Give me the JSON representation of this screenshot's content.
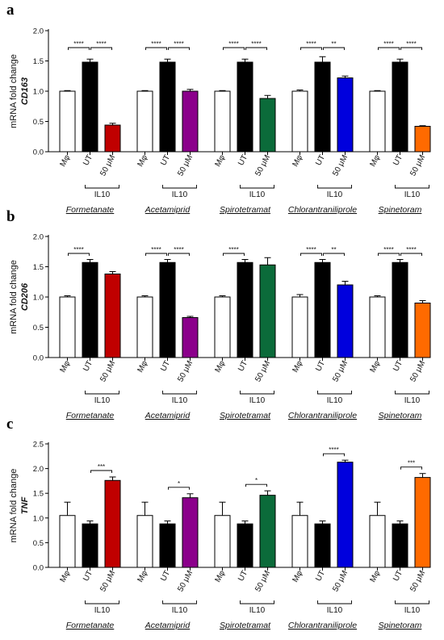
{
  "chart_data": [
    {
      "panel": "a",
      "type": "bar",
      "ylabel": "mRNA fold change",
      "ylabel_gene": "CD163",
      "ylim": [
        0,
        2.0
      ],
      "yticks": [
        "0.0",
        "0.5",
        "1.0",
        "1.5",
        "2.0"
      ],
      "categories": [
        "Mφ",
        "UT",
        "50 μM"
      ],
      "bracket_label": "IL10",
      "groups": [
        {
          "name": "Formetanate",
          "color": "#c00000",
          "values": [
            1.0,
            1.48,
            0.44
          ],
          "errors": [
            0.01,
            0.05,
            0.03
          ],
          "sig": [
            {
              "from": 0,
              "to": 1,
              "label": "****"
            },
            {
              "from": 1,
              "to": 2,
              "label": "****"
            }
          ]
        },
        {
          "name": "Acetamiprid",
          "color": "#8b008b",
          "values": [
            1.0,
            1.48,
            1.0
          ],
          "errors": [
            0.01,
            0.05,
            0.03
          ],
          "sig": [
            {
              "from": 0,
              "to": 1,
              "label": "****"
            },
            {
              "from": 1,
              "to": 2,
              "label": "****"
            }
          ]
        },
        {
          "name": "Spirotetramat",
          "color": "#0b6b3a",
          "values": [
            1.0,
            1.48,
            0.88
          ],
          "errors": [
            0.01,
            0.05,
            0.05
          ],
          "sig": [
            {
              "from": 0,
              "to": 1,
              "label": "****"
            },
            {
              "from": 1,
              "to": 2,
              "label": "****"
            }
          ]
        },
        {
          "name": "Chlorantraniliprole",
          "color": "#0000dd",
          "values": [
            1.0,
            1.48,
            1.22
          ],
          "errors": [
            0.02,
            0.09,
            0.03
          ],
          "sig": [
            {
              "from": 0,
              "to": 1,
              "label": "****"
            },
            {
              "from": 1,
              "to": 2,
              "label": "**"
            }
          ]
        },
        {
          "name": "Spinetoram",
          "color": "#ff6a00",
          "values": [
            1.0,
            1.48,
            0.42
          ],
          "errors": [
            0.01,
            0.05,
            0.01
          ],
          "sig": [
            {
              "from": 0,
              "to": 1,
              "label": "****"
            },
            {
              "from": 1,
              "to": 2,
              "label": "****"
            }
          ]
        }
      ]
    },
    {
      "panel": "b",
      "type": "bar",
      "ylabel": "mRNA fold change",
      "ylabel_gene": "CD206",
      "ylim": [
        0,
        2.0
      ],
      "yticks": [
        "0.0",
        "0.5",
        "1.0",
        "1.5",
        "2.0"
      ],
      "categories": [
        "Mφ",
        "UT",
        "50 μM"
      ],
      "bracket_label": "IL10",
      "groups": [
        {
          "name": "Formetanate",
          "color": "#c00000",
          "values": [
            1.0,
            1.57,
            1.38
          ],
          "errors": [
            0.02,
            0.05,
            0.04
          ],
          "sig": [
            {
              "from": 0,
              "to": 1,
              "label": "****"
            }
          ]
        },
        {
          "name": "Acetamiprid",
          "color": "#8b008b",
          "values": [
            1.0,
            1.57,
            0.66
          ],
          "errors": [
            0.02,
            0.05,
            0.02
          ],
          "sig": [
            {
              "from": 0,
              "to": 1,
              "label": "****"
            },
            {
              "from": 1,
              "to": 2,
              "label": "****"
            }
          ]
        },
        {
          "name": "Spirotetramat",
          "color": "#0b6b3a",
          "values": [
            1.0,
            1.57,
            1.53
          ],
          "errors": [
            0.02,
            0.05,
            0.12
          ],
          "sig": [
            {
              "from": 0,
              "to": 1,
              "label": "****"
            }
          ]
        },
        {
          "name": "Chlorantraniliprole",
          "color": "#0000dd",
          "values": [
            1.0,
            1.57,
            1.2
          ],
          "errors": [
            0.04,
            0.05,
            0.06
          ],
          "sig": [
            {
              "from": 0,
              "to": 1,
              "label": "****"
            },
            {
              "from": 1,
              "to": 2,
              "label": "**"
            }
          ]
        },
        {
          "name": "Spinetoram",
          "color": "#ff6a00",
          "values": [
            1.0,
            1.57,
            0.9
          ],
          "errors": [
            0.02,
            0.05,
            0.04
          ],
          "sig": [
            {
              "from": 0,
              "to": 1,
              "label": "****"
            },
            {
              "from": 1,
              "to": 2,
              "label": "****"
            }
          ]
        }
      ]
    },
    {
      "panel": "c",
      "type": "bar",
      "ylabel": "mRNA fold change",
      "ylabel_gene": "TNF",
      "ylim": [
        0,
        2.5
      ],
      "yticks": [
        "0.0",
        "0.5",
        "1.0",
        "1.5",
        "2.0",
        "2.5"
      ],
      "categories": [
        "Mφ",
        "UT",
        "50 μM"
      ],
      "bracket_label": "IL10",
      "groups": [
        {
          "name": "Formetanate",
          "color": "#c00000",
          "values": [
            1.05,
            0.88,
            1.76
          ],
          "errors": [
            0.27,
            0.06,
            0.07
          ],
          "sig": [
            {
              "from": 1,
              "to": 2,
              "label": "***"
            }
          ]
        },
        {
          "name": "Acetamiprid",
          "color": "#8b008b",
          "values": [
            1.05,
            0.88,
            1.41
          ],
          "errors": [
            0.27,
            0.06,
            0.08
          ],
          "sig": [
            {
              "from": 1,
              "to": 2,
              "label": "*"
            }
          ]
        },
        {
          "name": "Spirotetramat",
          "color": "#0b6b3a",
          "values": [
            1.05,
            0.88,
            1.46
          ],
          "errors": [
            0.27,
            0.06,
            0.09
          ],
          "sig": [
            {
              "from": 1,
              "to": 2,
              "label": "*"
            }
          ]
        },
        {
          "name": "Chlorantraniliprole",
          "color": "#0000dd",
          "values": [
            1.05,
            0.88,
            2.13
          ],
          "errors": [
            0.27,
            0.06,
            0.04
          ],
          "sig": [
            {
              "from": 1,
              "to": 2,
              "label": "****"
            }
          ]
        },
        {
          "name": "Spinetoram",
          "color": "#ff6a00",
          "values": [
            1.05,
            0.88,
            1.82
          ],
          "errors": [
            0.27,
            0.06,
            0.08
          ],
          "sig": [
            {
              "from": 1,
              "to": 2,
              "label": "***"
            }
          ]
        }
      ]
    }
  ]
}
